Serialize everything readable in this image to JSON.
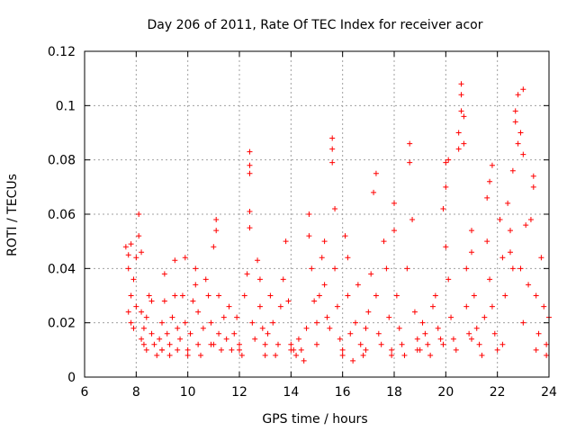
{
  "chart_data": {
    "type": "scatter",
    "title": "Day 206 of 2011, Rate Of TEC Index for receiver acor",
    "xlabel": "GPS time / hours",
    "ylabel": "ROTI / TECUs",
    "xlim": [
      6,
      24
    ],
    "ylim": [
      0,
      0.12
    ],
    "xticks": [
      "6",
      "8",
      "10",
      "12",
      "14",
      "16",
      "18",
      "20",
      "22",
      "24"
    ],
    "yticks": [
      "0",
      "0.02",
      "0.04",
      "0.06",
      "0.08",
      "0.1",
      "0.12"
    ],
    "grid": true,
    "marker": "+",
    "color": "#ff0000",
    "series": [
      {
        "name": "ROTI",
        "points": [
          [
            7.6,
            0.048
          ],
          [
            7.7,
            0.045
          ],
          [
            7.7,
            0.04
          ],
          [
            7.8,
            0.049
          ],
          [
            7.9,
            0.036
          ],
          [
            7.8,
            0.03
          ],
          [
            7.7,
            0.024
          ],
          [
            7.8,
            0.02
          ],
          [
            7.9,
            0.018
          ],
          [
            8.0,
            0.044
          ],
          [
            8.1,
            0.06
          ],
          [
            8.1,
            0.052
          ],
          [
            8.2,
            0.046
          ],
          [
            8.0,
            0.026
          ],
          [
            8.2,
            0.024
          ],
          [
            8.3,
            0.018
          ],
          [
            8.3,
            0.012
          ],
          [
            8.4,
            0.01
          ],
          [
            8.4,
            0.022
          ],
          [
            8.5,
            0.03
          ],
          [
            8.6,
            0.016
          ],
          [
            8.7,
            0.012
          ],
          [
            8.8,
            0.008
          ],
          [
            8.6,
            0.028
          ],
          [
            8.9,
            0.014
          ],
          [
            9.0,
            0.02
          ],
          [
            9.0,
            0.01
          ],
          [
            9.1,
            0.038
          ],
          [
            9.1,
            0.028
          ],
          [
            9.2,
            0.016
          ],
          [
            9.3,
            0.012
          ],
          [
            9.3,
            0.008
          ],
          [
            9.4,
            0.022
          ],
          [
            9.5,
            0.043
          ],
          [
            9.5,
            0.03
          ],
          [
            9.6,
            0.018
          ],
          [
            9.6,
            0.01
          ],
          [
            9.7,
            0.014
          ],
          [
            9.8,
            0.03
          ],
          [
            9.9,
            0.044
          ],
          [
            9.9,
            0.02
          ],
          [
            10.0,
            0.01
          ],
          [
            10.1,
            0.016
          ],
          [
            10.2,
            0.028
          ],
          [
            10.3,
            0.04
          ],
          [
            10.3,
            0.034
          ],
          [
            10.4,
            0.024
          ],
          [
            10.4,
            0.012
          ],
          [
            10.5,
            0.008
          ],
          [
            10.6,
            0.018
          ],
          [
            10.7,
            0.036
          ],
          [
            10.8,
            0.03
          ],
          [
            10.9,
            0.02
          ],
          [
            10.9,
            0.012
          ],
          [
            11.0,
            0.048
          ],
          [
            11.1,
            0.058
          ],
          [
            11.1,
            0.054
          ],
          [
            11.2,
            0.03
          ],
          [
            11.2,
            0.016
          ],
          [
            11.3,
            0.01
          ],
          [
            11.4,
            0.022
          ],
          [
            11.5,
            0.014
          ],
          [
            11.6,
            0.026
          ],
          [
            11.7,
            0.01
          ],
          [
            11.8,
            0.016
          ],
          [
            11.9,
            0.022
          ],
          [
            12.0,
            0.012
          ],
          [
            12.1,
            0.008
          ],
          [
            12.2,
            0.03
          ],
          [
            12.3,
            0.038
          ],
          [
            12.4,
            0.083
          ],
          [
            12.4,
            0.078
          ],
          [
            12.4,
            0.075
          ],
          [
            12.4,
            0.061
          ],
          [
            12.4,
            0.055
          ],
          [
            12.5,
            0.02
          ],
          [
            12.6,
            0.014
          ],
          [
            12.7,
            0.043
          ],
          [
            12.8,
            0.036
          ],
          [
            12.8,
            0.026
          ],
          [
            12.9,
            0.018
          ],
          [
            13.0,
            0.012
          ],
          [
            13.1,
            0.016
          ],
          [
            13.2,
            0.03
          ],
          [
            13.3,
            0.02
          ],
          [
            13.4,
            0.008
          ],
          [
            13.5,
            0.012
          ],
          [
            13.6,
            0.026
          ],
          [
            13.7,
            0.036
          ],
          [
            13.8,
            0.05
          ],
          [
            13.9,
            0.028
          ],
          [
            14.0,
            0.012
          ],
          [
            14.1,
            0.01
          ],
          [
            14.2,
            0.008
          ],
          [
            14.3,
            0.014
          ],
          [
            14.4,
            0.01
          ],
          [
            14.5,
            0.006
          ],
          [
            14.6,
            0.018
          ],
          [
            14.7,
            0.06
          ],
          [
            14.7,
            0.052
          ],
          [
            14.8,
            0.04
          ],
          [
            14.9,
            0.028
          ],
          [
            15.0,
            0.02
          ],
          [
            15.1,
            0.03
          ],
          [
            15.2,
            0.044
          ],
          [
            15.3,
            0.05
          ],
          [
            15.3,
            0.034
          ],
          [
            15.4,
            0.022
          ],
          [
            15.5,
            0.018
          ],
          [
            15.6,
            0.088
          ],
          [
            15.6,
            0.084
          ],
          [
            15.6,
            0.079
          ],
          [
            15.7,
            0.062
          ],
          [
            15.7,
            0.04
          ],
          [
            15.8,
            0.026
          ],
          [
            15.9,
            0.014
          ],
          [
            16.0,
            0.01
          ],
          [
            16.1,
            0.052
          ],
          [
            16.2,
            0.044
          ],
          [
            16.2,
            0.03
          ],
          [
            16.3,
            0.016
          ],
          [
            16.4,
            0.006
          ],
          [
            16.5,
            0.02
          ],
          [
            16.6,
            0.034
          ],
          [
            16.7,
            0.012
          ],
          [
            16.8,
            0.008
          ],
          [
            16.9,
            0.018
          ],
          [
            17.0,
            0.024
          ],
          [
            17.1,
            0.038
          ],
          [
            17.2,
            0.068
          ],
          [
            17.3,
            0.075
          ],
          [
            17.3,
            0.03
          ],
          [
            17.4,
            0.016
          ],
          [
            17.5,
            0.012
          ],
          [
            17.6,
            0.05
          ],
          [
            17.7,
            0.04
          ],
          [
            17.8,
            0.022
          ],
          [
            17.9,
            0.01
          ],
          [
            18.0,
            0.064
          ],
          [
            18.0,
            0.054
          ],
          [
            18.1,
            0.03
          ],
          [
            18.2,
            0.018
          ],
          [
            18.3,
            0.012
          ],
          [
            18.4,
            0.008
          ],
          [
            18.5,
            0.04
          ],
          [
            18.6,
            0.086
          ],
          [
            18.6,
            0.079
          ],
          [
            18.7,
            0.058
          ],
          [
            18.8,
            0.024
          ],
          [
            18.9,
            0.014
          ],
          [
            19.0,
            0.01
          ],
          [
            19.1,
            0.02
          ],
          [
            19.2,
            0.016
          ],
          [
            19.3,
            0.012
          ],
          [
            19.4,
            0.008
          ],
          [
            19.5,
            0.026
          ],
          [
            19.6,
            0.03
          ],
          [
            19.7,
            0.018
          ],
          [
            19.8,
            0.014
          ],
          [
            19.9,
            0.062
          ],
          [
            20.0,
            0.079
          ],
          [
            20.0,
            0.07
          ],
          [
            20.0,
            0.048
          ],
          [
            20.1,
            0.08
          ],
          [
            20.1,
            0.036
          ],
          [
            20.2,
            0.022
          ],
          [
            20.3,
            0.014
          ],
          [
            20.4,
            0.01
          ],
          [
            20.5,
            0.09
          ],
          [
            20.5,
            0.084
          ],
          [
            20.6,
            0.108
          ],
          [
            20.6,
            0.104
          ],
          [
            20.6,
            0.098
          ],
          [
            20.7,
            0.096
          ],
          [
            20.7,
            0.086
          ],
          [
            20.8,
            0.04
          ],
          [
            20.8,
            0.026
          ],
          [
            20.9,
            0.016
          ],
          [
            21.0,
            0.054
          ],
          [
            21.0,
            0.046
          ],
          [
            21.1,
            0.03
          ],
          [
            21.2,
            0.018
          ],
          [
            21.3,
            0.012
          ],
          [
            21.4,
            0.008
          ],
          [
            21.5,
            0.022
          ],
          [
            21.6,
            0.066
          ],
          [
            21.6,
            0.05
          ],
          [
            21.7,
            0.072
          ],
          [
            21.7,
            0.036
          ],
          [
            21.8,
            0.078
          ],
          [
            21.8,
            0.026
          ],
          [
            21.9,
            0.016
          ],
          [
            22.0,
            0.01
          ],
          [
            22.1,
            0.058
          ],
          [
            22.2,
            0.044
          ],
          [
            22.3,
            0.03
          ],
          [
            22.4,
            0.064
          ],
          [
            22.5,
            0.054
          ],
          [
            22.5,
            0.046
          ],
          [
            22.6,
            0.076
          ],
          [
            22.6,
            0.04
          ],
          [
            22.7,
            0.098
          ],
          [
            22.7,
            0.094
          ],
          [
            22.8,
            0.104
          ],
          [
            22.8,
            0.086
          ],
          [
            22.9,
            0.09
          ],
          [
            22.9,
            0.04
          ],
          [
            23.0,
            0.106
          ],
          [
            23.0,
            0.082
          ],
          [
            23.0,
            0.02
          ],
          [
            23.1,
            0.056
          ],
          [
            23.2,
            0.034
          ],
          [
            23.3,
            0.058
          ],
          [
            23.4,
            0.074
          ],
          [
            23.4,
            0.07
          ],
          [
            23.5,
            0.03
          ],
          [
            23.6,
            0.016
          ],
          [
            23.7,
            0.044
          ],
          [
            23.8,
            0.026
          ],
          [
            23.9,
            0.012
          ],
          [
            24.0,
            0.022
          ],
          [
            23.9,
            0.008
          ],
          [
            23.5,
            0.01
          ],
          [
            22.2,
            0.012
          ],
          [
            21.0,
            0.014
          ],
          [
            19.9,
            0.012
          ],
          [
            18.9,
            0.01
          ],
          [
            17.9,
            0.008
          ],
          [
            16.9,
            0.01
          ],
          [
            16.0,
            0.008
          ],
          [
            15.0,
            0.012
          ],
          [
            14.0,
            0.01
          ],
          [
            13.0,
            0.008
          ],
          [
            12.0,
            0.01
          ],
          [
            11.0,
            0.012
          ],
          [
            10.0,
            0.008
          ],
          [
            9.0,
            0.01
          ],
          [
            8.2,
            0.014
          ]
        ]
      }
    ]
  }
}
